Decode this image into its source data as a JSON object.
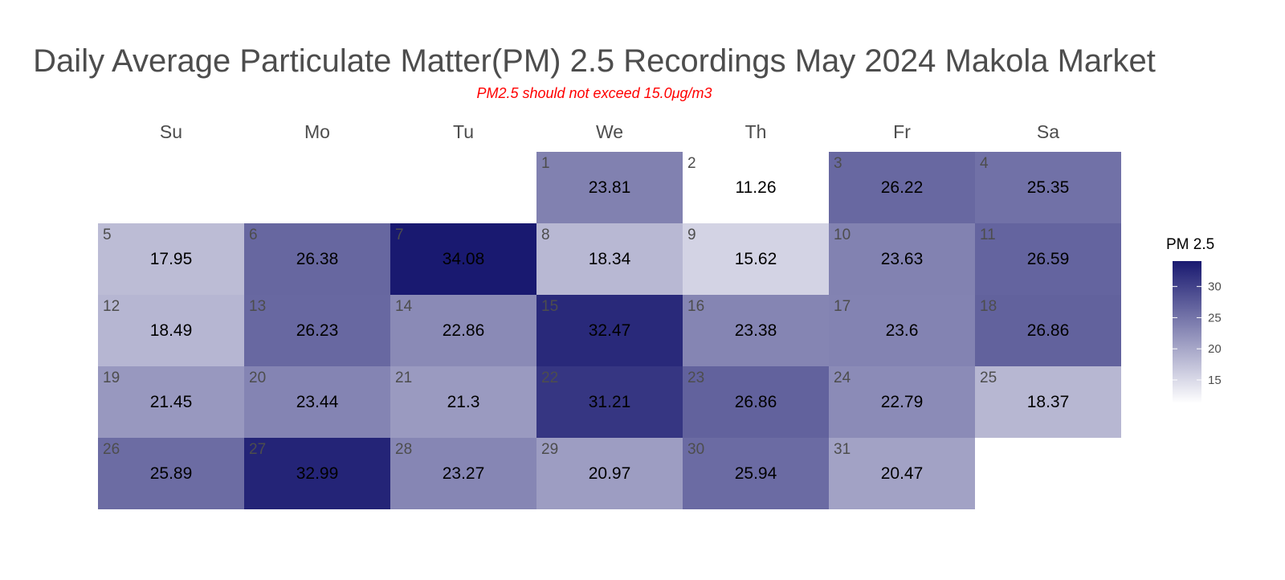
{
  "chart_data": {
    "type": "heatmap",
    "subtype": "calendar",
    "title": "Daily Average Particulate Matter(PM) 2.5 Recordings May 2024 Makola Market",
    "subtitle": "PM2.5 should not exceed 15.0μg/m3",
    "weekdays": [
      "Su",
      "Mo",
      "Tu",
      "We",
      "Th",
      "Fr",
      "Sa"
    ],
    "first_weekday_index": 3,
    "days": [
      {
        "day": 1,
        "value": 23.81
      },
      {
        "day": 2,
        "value": 11.26
      },
      {
        "day": 3,
        "value": 26.22
      },
      {
        "day": 4,
        "value": 25.35
      },
      {
        "day": 5,
        "value": 17.95
      },
      {
        "day": 6,
        "value": 26.38
      },
      {
        "day": 7,
        "value": 34.08
      },
      {
        "day": 8,
        "value": 18.34
      },
      {
        "day": 9,
        "value": 15.62
      },
      {
        "day": 10,
        "value": 23.63
      },
      {
        "day": 11,
        "value": 26.59
      },
      {
        "day": 12,
        "value": 18.49
      },
      {
        "day": 13,
        "value": 26.23
      },
      {
        "day": 14,
        "value": 22.86
      },
      {
        "day": 15,
        "value": 32.47
      },
      {
        "day": 16,
        "value": 23.38
      },
      {
        "day": 17,
        "value": 23.6
      },
      {
        "day": 18,
        "value": 26.86
      },
      {
        "day": 19,
        "value": 21.45
      },
      {
        "day": 20,
        "value": 23.44
      },
      {
        "day": 21,
        "value": 21.3
      },
      {
        "day": 22,
        "value": 31.21
      },
      {
        "day": 23,
        "value": 26.86
      },
      {
        "day": 24,
        "value": 22.79
      },
      {
        "day": 25,
        "value": 18.37
      },
      {
        "day": 26,
        "value": 25.89
      },
      {
        "day": 27,
        "value": 32.99
      },
      {
        "day": 28,
        "value": 23.27
      },
      {
        "day": 29,
        "value": 20.97
      },
      {
        "day": 30,
        "value": 25.94
      },
      {
        "day": 31,
        "value": 20.47
      }
    ],
    "legend": {
      "title": "PM 2.5",
      "ticks": [
        15,
        20,
        25,
        30
      ],
      "range": [
        11.26,
        34.08
      ],
      "low_color": "#ffffff",
      "high_color": "#191970",
      "position": "right"
    }
  }
}
